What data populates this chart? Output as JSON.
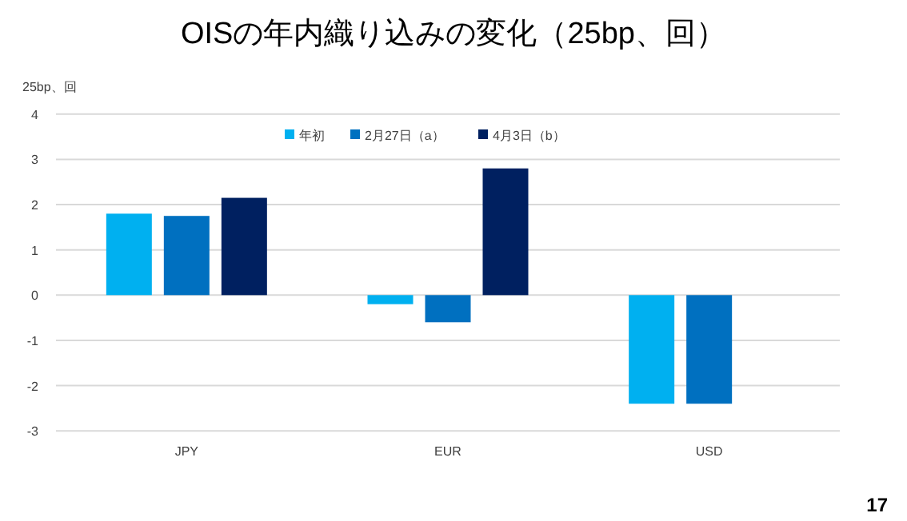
{
  "chart_data": {
    "type": "bar",
    "title": "OISの年内織り込みの変化（25bp、回）",
    "ylabel": "25bp、回",
    "categories": [
      "JPY",
      "EUR",
      "USD"
    ],
    "series": [
      {
        "name": "年初",
        "color": "#00b0f0",
        "values": [
          1.8,
          -0.2,
          -2.4
        ]
      },
      {
        "name": "2月27日（a）",
        "color": "#0070c0",
        "values": [
          1.75,
          -0.6,
          -2.4
        ]
      },
      {
        "name": "4月3日（b）",
        "color": "#002060",
        "values": [
          2.15,
          2.8,
          null
        ]
      }
    ],
    "ylim": [
      -3,
      4
    ],
    "yticks": [
      -3,
      -2,
      -1,
      0,
      1,
      2,
      3,
      4
    ],
    "grid": "y",
    "legend": "top",
    "annotations": [
      "17"
    ]
  }
}
